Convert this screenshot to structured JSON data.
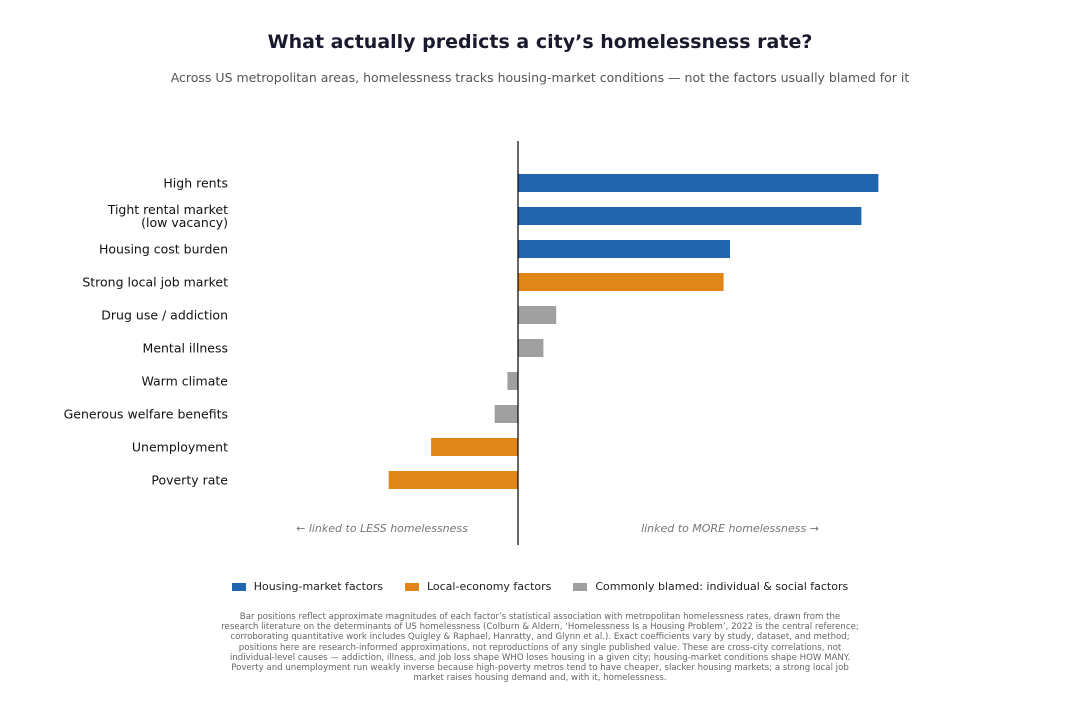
{
  "title": "What actually predicts a city’s homelessness rate?",
  "subtitle": "Across US metropolitan areas, homelessness tracks housing-market conditions — not the factors usually blamed for it",
  "colors": {
    "housing": "#2166ac",
    "economy": "#e08518",
    "blamed": "#a0a0a0"
  },
  "chart_data": {
    "type": "bar",
    "orientation": "horizontal",
    "categories": [
      "High rents",
      "Tight rental market\n(low vacancy)",
      "Housing cost burden",
      "Strong local job market",
      "Drug use / addiction",
      "Mental illness",
      "Warm climate",
      "Generous welfare benefits",
      "Unemployment",
      "Poverty rate"
    ],
    "values": [
      0.85,
      0.81,
      0.5,
      0.485,
      0.09,
      0.06,
      -0.025,
      -0.055,
      -0.205,
      -0.305
    ],
    "groups": [
      "housing",
      "housing",
      "housing",
      "economy",
      "blamed",
      "blamed",
      "blamed",
      "blamed",
      "economy",
      "economy"
    ],
    "xlim": [
      -0.55,
      0.85
    ],
    "legend": [
      {
        "key": "housing",
        "label": "Housing-market factors"
      },
      {
        "key": "economy",
        "label": "Local-economy factors"
      },
      {
        "key": "blamed",
        "label": "Commonly blamed: individual & social factors"
      }
    ],
    "legend_position": "bottom-center",
    "annotations": {
      "left": "←  linked to LESS homelessness",
      "right": "linked to MORE homelessness  →"
    },
    "grid": false
  },
  "footnote": "Bar positions reflect approximate magnitudes of each factor’s statistical association with metropolitan homelessness rates, drawn from the research literature on the determinants of US homelessness (Colburn & Aldern, ‘Homelessness Is a Housing Problem’, 2022 is the central reference; corroborating quantitative work includes Quigley & Raphael, Hanratty, and Glynn et al.). Exact coefficients vary by study, dataset, and method; positions here are research-informed approximations, not reproductions of any single published value. These are cross-city correlations, not individual-level causes — addiction, illness, and job loss shape WHO loses housing in a given city; housing-market conditions shape HOW MANY. Poverty and unemployment run weakly inverse because high-poverty metros tend to have cheaper, slacker housing markets; a strong local job market raises housing demand and, with it, homelessness."
}
